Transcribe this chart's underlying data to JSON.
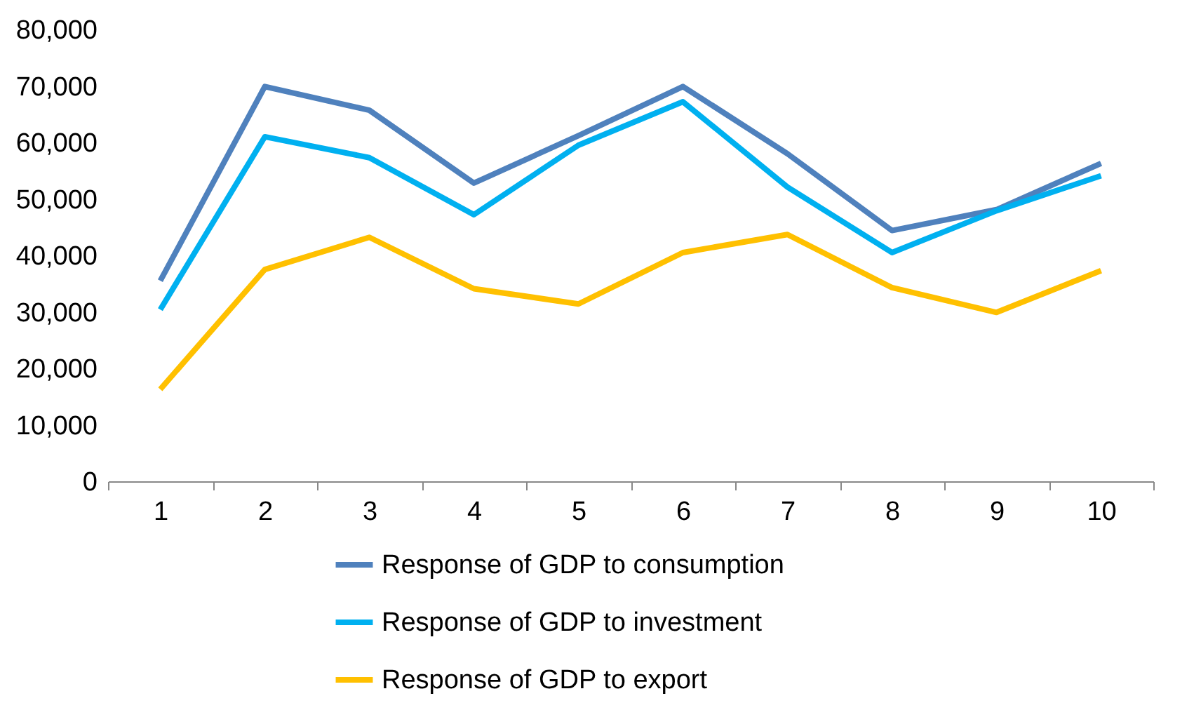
{
  "chart_data": {
    "type": "line",
    "categories": [
      "1",
      "2",
      "3",
      "4",
      "5",
      "6",
      "7",
      "8",
      "9",
      "10"
    ],
    "series": [
      {
        "name": "Response of GDP to consumption",
        "color": "#4f81bd",
        "values": [
          35500,
          69900,
          65700,
          52800,
          61200,
          69900,
          58000,
          44400,
          48100,
          56300
        ]
      },
      {
        "name": "Response of GDP to investment",
        "color": "#00b0f0",
        "values": [
          30400,
          61000,
          57300,
          47200,
          59500,
          67200,
          52100,
          40500,
          47900,
          54100
        ]
      },
      {
        "name": "Response of GDP to export",
        "color": "#ffc000",
        "values": [
          16300,
          37500,
          43200,
          34100,
          31400,
          40500,
          43700,
          34300,
          29900,
          37300
        ]
      }
    ],
    "ylim": [
      0,
      80000
    ],
    "yticks": [
      0,
      {
        "value": 10000,
        "label": "10,000"
      },
      {
        "value": 20000,
        "label": "20,000"
      },
      {
        "value": 30000,
        "label": "30,000"
      },
      {
        "value": 40000,
        "label": "40,000"
      },
      {
        "value": 50000,
        "label": "50,000"
      },
      {
        "value": 60000,
        "label": "60,000"
      },
      {
        "value": 70000,
        "label": "70,000"
      },
      {
        "value": 80000,
        "label": "80,000"
      }
    ],
    "legend": "bottom"
  }
}
